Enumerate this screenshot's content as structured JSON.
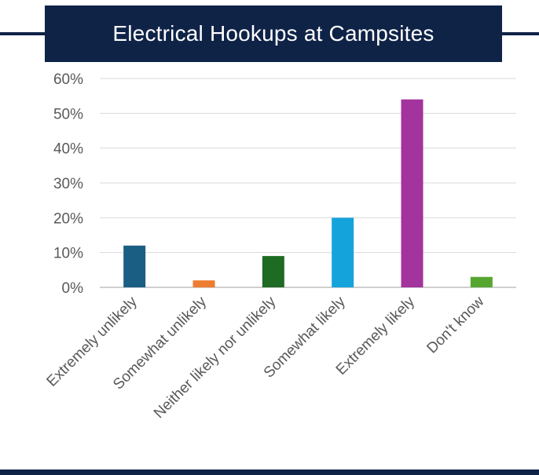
{
  "title": "Electrical Hookups at Campsites",
  "colors": {
    "banner": "#0f2347",
    "grid": "#d9d9d9",
    "axis": "#bfbfbf",
    "text": "#595959"
  },
  "chart_data": {
    "type": "bar",
    "title": "Electrical Hookups at Campsites",
    "xlabel": "",
    "ylabel": "",
    "ylim": [
      0,
      60
    ],
    "yticks": [
      "0%",
      "10%",
      "20%",
      "30%",
      "40%",
      "50%",
      "60%"
    ],
    "grid": true,
    "legend": "none",
    "categories": [
      "Extremely unlikely",
      "Somewhat unlikely",
      "Neither likely nor unlikely",
      "Somewhat likely",
      "Extremely likely",
      "Don't know"
    ],
    "values": [
      12,
      2,
      9,
      20,
      54,
      3
    ],
    "bar_colors": [
      "#1b5e83",
      "#ed7d31",
      "#1e6b23",
      "#15a3dc",
      "#a3339d",
      "#55a630"
    ]
  }
}
